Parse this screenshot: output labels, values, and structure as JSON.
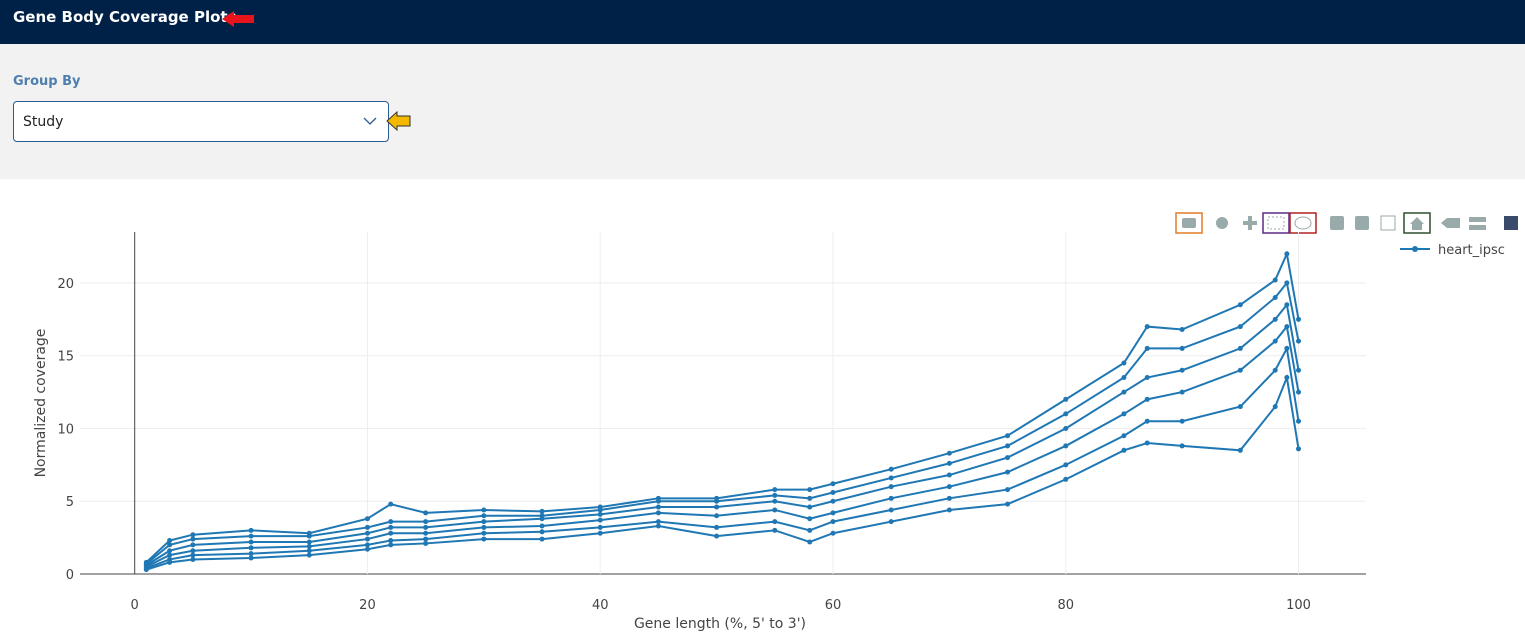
{
  "header": {
    "title": "Gene Body Coverage Plots"
  },
  "controls": {
    "group_by_label": "Group By",
    "group_by_value": "Study"
  },
  "chart_data": {
    "type": "line",
    "x_label": "Gene length (%, 5' to 3')",
    "y_label": "Normalized coverage",
    "x": [
      1,
      3,
      5,
      10,
      15,
      20,
      22,
      25,
      30,
      35,
      40,
      45,
      50,
      55,
      58,
      60,
      65,
      70,
      75,
      80,
      85,
      87,
      90,
      95,
      98,
      99,
      100
    ],
    "series": [
      {
        "name": "heart_ipsc",
        "color": "#1f77b4",
        "values": [
          0.8,
          2.3,
          2.7,
          3.0,
          2.8,
          3.8,
          4.8,
          4.2,
          4.4,
          4.3,
          4.6,
          5.2,
          5.2,
          5.8,
          5.8,
          6.2,
          7.2,
          8.3,
          9.5,
          12.0,
          14.5,
          17.0,
          16.8,
          18.5,
          20.2,
          22.0,
          17.5
        ]
      },
      {
        "color": "#1f77b4",
        "values": [
          0.7,
          2.0,
          2.4,
          2.6,
          2.6,
          3.2,
          3.6,
          3.6,
          4.0,
          4.0,
          4.4,
          5.0,
          5.0,
          5.4,
          5.2,
          5.6,
          6.6,
          7.6,
          8.8,
          11.0,
          13.5,
          15.5,
          15.5,
          17.0,
          19.0,
          20.0,
          16.0
        ]
      },
      {
        "color": "#1f77b4",
        "values": [
          0.6,
          1.6,
          2.0,
          2.2,
          2.2,
          2.8,
          3.2,
          3.2,
          3.6,
          3.8,
          4.1,
          4.6,
          4.6,
          5.0,
          4.6,
          5.0,
          6.0,
          6.8,
          8.0,
          10.0,
          12.5,
          13.5,
          14.0,
          15.5,
          17.5,
          18.5,
          14.0
        ]
      },
      {
        "color": "#1f77b4",
        "values": [
          0.5,
          1.3,
          1.6,
          1.8,
          1.9,
          2.4,
          2.8,
          2.8,
          3.2,
          3.3,
          3.7,
          4.2,
          4.0,
          4.4,
          3.8,
          4.2,
          5.2,
          6.0,
          7.0,
          8.8,
          11.0,
          12.0,
          12.5,
          14.0,
          16.0,
          17.0,
          12.5
        ]
      },
      {
        "color": "#1f77b4",
        "values": [
          0.4,
          1.0,
          1.3,
          1.4,
          1.6,
          2.0,
          2.3,
          2.4,
          2.8,
          2.9,
          3.2,
          3.6,
          3.2,
          3.6,
          3.0,
          3.6,
          4.4,
          5.2,
          5.8,
          7.5,
          9.5,
          10.5,
          10.5,
          11.5,
          14.0,
          15.5,
          10.5
        ]
      },
      {
        "color": "#1f77b4",
        "values": [
          0.3,
          0.8,
          1.0,
          1.1,
          1.3,
          1.7,
          2.0,
          2.1,
          2.4,
          2.4,
          2.8,
          3.3,
          2.6,
          3.0,
          2.2,
          2.8,
          3.6,
          4.4,
          4.8,
          6.5,
          8.5,
          9.0,
          8.8,
          8.5,
          11.5,
          13.5,
          8.6
        ]
      }
    ],
    "xlim": [
      -4.7,
      105.8
    ],
    "ylim": [
      0,
      23.5
    ],
    "xticks": [
      0,
      20,
      40,
      60,
      80,
      100
    ],
    "yticks": [
      0,
      5,
      10,
      15,
      20
    ],
    "grid": true,
    "legend": "top-right"
  }
}
